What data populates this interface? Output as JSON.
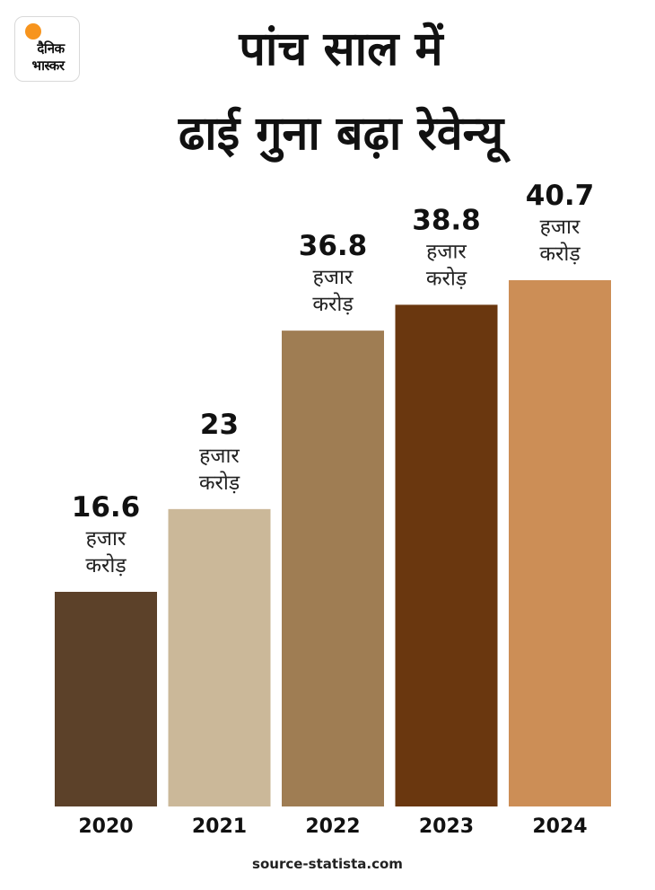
{
  "brand": {
    "logo_line1": "दैनिक",
    "logo_line2": "भास्कर",
    "sun_color": "#f7941d"
  },
  "title_line1": "पांच साल में",
  "title_line2": "ढाई गुना बढ़ा रेवेन्यू",
  "source": "source-statista.com",
  "chart_data": {
    "type": "bar",
    "categories": [
      "2020",
      "2021",
      "2022",
      "2023",
      "2024"
    ],
    "values": [
      16.6,
      23,
      36.8,
      38.8,
      40.7
    ],
    "value_labels": [
      "16.6",
      "23",
      "36.8",
      "38.8",
      "40.7"
    ],
    "unit_line1": "हजार",
    "unit_line2": "करोड़",
    "colors": [
      "#5c4129",
      "#cbb899",
      "#9f7d53",
      "#6a370f",
      "#cc8e56"
    ],
    "ylim": [
      0,
      40.7
    ],
    "grid": false,
    "legend": "none"
  }
}
